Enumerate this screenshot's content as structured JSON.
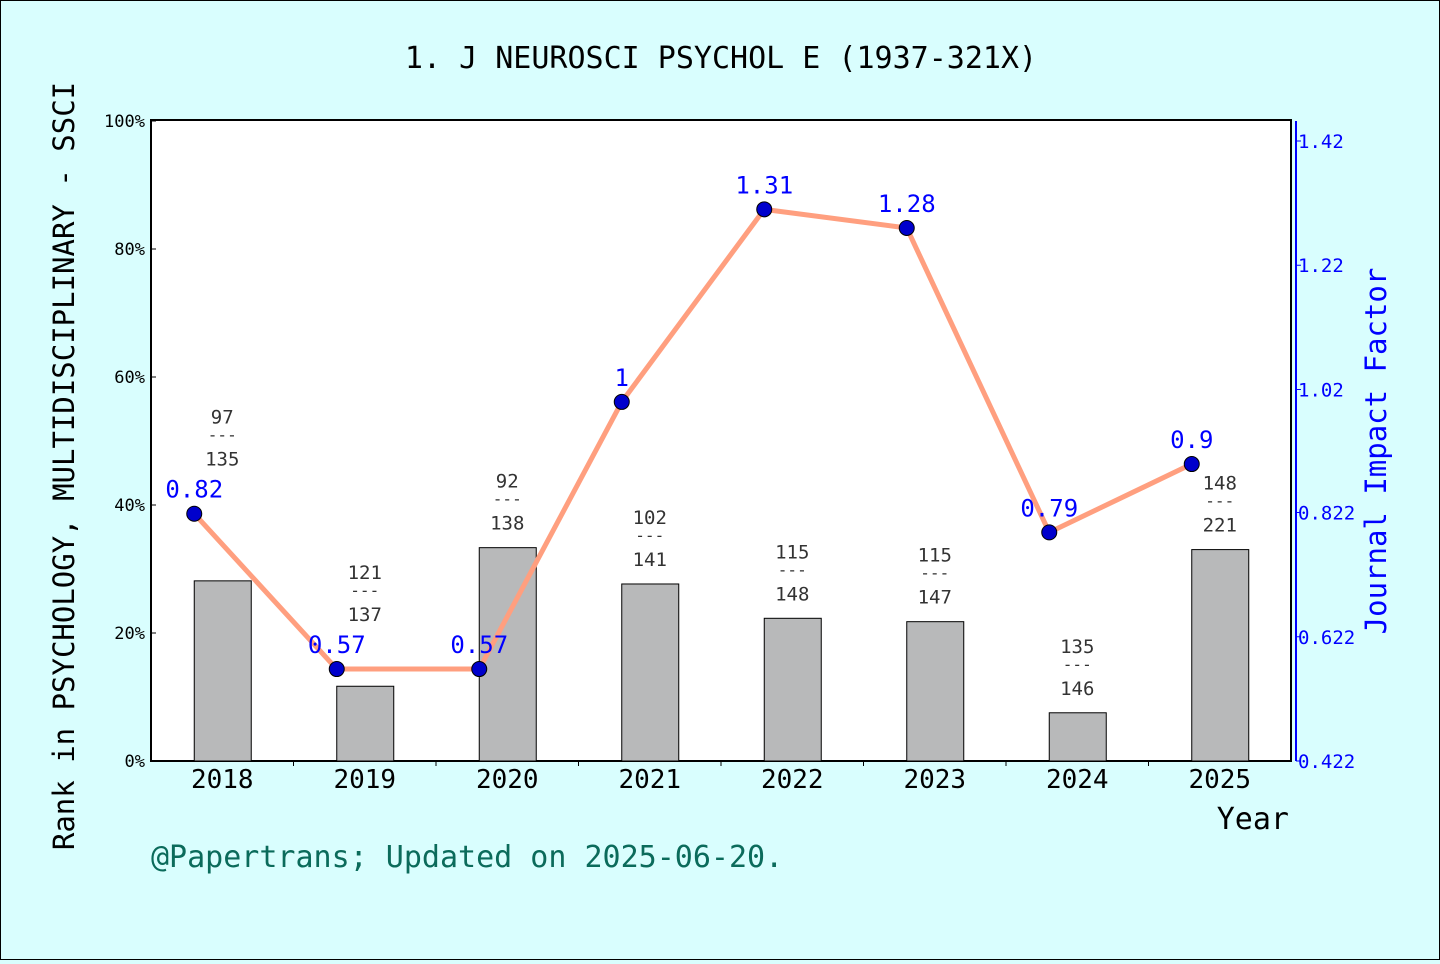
{
  "chart_data": {
    "type": "bar+line",
    "title": "1. J NEUROSCI PSYCHOL E (1937-321X)",
    "xlabel": "Year",
    "ylabel_left": "Rank in PSYCHOLOGY, MULTIDISCIPLINARY - SSCI",
    "ylabel_right": "Journal Impact Factor",
    "categories": [
      "2018",
      "2019",
      "2020",
      "2021",
      "2022",
      "2023",
      "2024",
      "2025"
    ],
    "rank": [
      97,
      121,
      92,
      102,
      115,
      115,
      135,
      148
    ],
    "total": [
      135,
      137,
      138,
      141,
      148,
      147,
      146,
      221
    ],
    "bar_percent": [
      28.1,
      11.7,
      33.3,
      27.7,
      22.3,
      21.8,
      7.5,
      33.0
    ],
    "impact_factor": [
      0.82,
      0.57,
      0.57,
      1,
      1.31,
      1.28,
      0.79,
      0.9
    ],
    "impact_factor_labels": [
      "0.82",
      "0.57",
      "0.57",
      "1",
      "1.31",
      "1.28",
      "0.79",
      "0.9"
    ],
    "left_ticks": [
      "0%",
      "20%",
      "40%",
      "60%",
      "80%",
      "100%"
    ],
    "ylim_left": [
      0,
      100
    ],
    "right_ticks": [
      "0.422",
      "0.622",
      "0.822",
      "1.02",
      "1.22",
      "1.42"
    ],
    "ylim_right": [
      0.422,
      1.42
    ],
    "grid": false,
    "colors": {
      "bar": "#b8b9ba",
      "line": "#ff9f7f",
      "marker": "#0000cc",
      "if_text": "#0000ff",
      "background": "#d9fefe",
      "footer": "#0b6b5b"
    }
  },
  "footer": "@Papertrans; Updated on 2025-06-20."
}
